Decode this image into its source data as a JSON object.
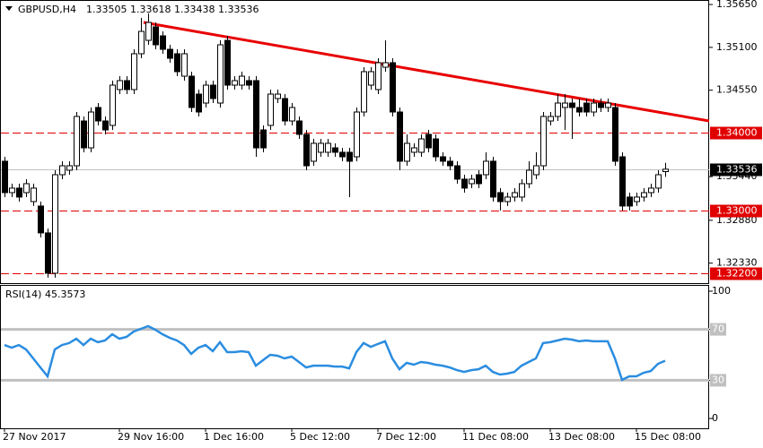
{
  "chart_data": {
    "type": "candlestick",
    "symbol": "GBPUSD,H4",
    "ohlc_labels": [
      "1.33505",
      "1.33618",
      "1.33438",
      "1.33536"
    ],
    "ylim": [
      1.32073,
      1.35708
    ],
    "yticks": [
      {
        "value": 1.3565,
        "label": "1.35650"
      },
      {
        "value": 1.351,
        "label": "1.35100"
      },
      {
        "value": 1.3455,
        "label": "1.34550"
      },
      {
        "value": 1.3344,
        "label": "1.33440"
      },
      {
        "value": 1.3288,
        "label": "1.32880"
      },
      {
        "value": 1.3233,
        "label": "1.32330"
      }
    ],
    "levels": [
      {
        "value": 1.34,
        "label": "1.34000"
      },
      {
        "value": 1.33,
        "label": "1.33000"
      },
      {
        "value": 1.322,
        "label": "1.32200"
      }
    ],
    "level_color": "#e00000",
    "current": {
      "value": 1.33536,
      "label": "1.33536"
    },
    "categories": [
      "27 Nov 2017",
      null,
      null,
      null,
      null,
      null,
      null,
      null,
      null,
      null,
      null,
      null,
      null,
      null,
      null,
      null,
      "29 Nov 16:00",
      null,
      null,
      null,
      null,
      null,
      null,
      null,
      null,
      null,
      null,
      null,
      "1 Dec 16:00",
      null,
      null,
      null,
      null,
      null,
      null,
      null,
      null,
      null,
      null,
      null,
      "5 Dec 12:00",
      null,
      null,
      null,
      null,
      null,
      null,
      null,
      null,
      null,
      null,
      null,
      "7 Dec 12:00",
      null,
      null,
      null,
      null,
      null,
      null,
      null,
      null,
      null,
      null,
      null,
      "11 Dec 08:00",
      null,
      null,
      null,
      null,
      null,
      null,
      null,
      null,
      null,
      null,
      null,
      "13 Dec 08:00",
      null,
      null,
      null,
      null,
      null,
      null,
      null,
      null,
      null,
      null,
      null,
      "15 Dec 08:00",
      null,
      null,
      null,
      null
    ],
    "candles": [
      [
        1.33638,
        1.33695,
        1.33178,
        1.33235
      ],
      [
        1.33235,
        1.3335,
        1.33178,
        1.33293
      ],
      [
        1.33293,
        1.3335,
        1.3312,
        1.33178
      ],
      [
        1.33235,
        1.33408,
        1.33178,
        1.3335
      ],
      [
        1.3312,
        1.3335,
        1.33063,
        1.33293
      ],
      [
        1.33063,
        1.3312,
        1.3266,
        1.32718
      ],
      [
        1.32718,
        1.32775,
        1.32143,
        1.322
      ],
      [
        1.322,
        1.33523,
        1.32143,
        1.33465
      ],
      [
        1.33465,
        1.33638,
        1.33408,
        1.3358
      ],
      [
        1.33523,
        1.33638,
        1.33465,
        1.3358
      ],
      [
        1.3358,
        1.3427,
        1.33523,
        1.34213
      ],
      [
        1.34155,
        1.34213,
        1.33753,
        1.3381
      ],
      [
        1.3381,
        1.34328,
        1.33753,
        1.3427
      ],
      [
        1.34328,
        1.34385,
        1.34098,
        1.34155
      ],
      [
        1.34155,
        1.34213,
        1.33983,
        1.3404
      ],
      [
        1.34098,
        1.34673,
        1.3404,
        1.34615
      ],
      [
        1.34558,
        1.3473,
        1.345,
        1.34673
      ],
      [
        1.34673,
        1.3473,
        1.345,
        1.34558
      ],
      [
        1.34558,
        1.35075,
        1.345,
        1.35018
      ],
      [
        1.35018,
        1.35478,
        1.3496,
        1.35305
      ],
      [
        1.3519,
        1.35535,
        1.35133,
        1.3542
      ],
      [
        1.35363,
        1.3542,
        1.35075,
        1.35133
      ],
      [
        1.35248,
        1.35305,
        1.35018,
        1.35075
      ],
      [
        1.35075,
        1.35133,
        1.34903,
        1.3496
      ],
      [
        1.35018,
        1.35075,
        1.3473,
        1.34788
      ],
      [
        1.3473,
        1.35075,
        1.34673,
        1.35018
      ],
      [
        1.3473,
        1.34788,
        1.3427,
        1.34328
      ],
      [
        1.345,
        1.34558,
        1.34213,
        1.3427
      ],
      [
        1.34385,
        1.34673,
        1.34328,
        1.34615
      ],
      [
        1.34615,
        1.34673,
        1.34385,
        1.34443
      ],
      [
        1.34385,
        1.3519,
        1.34328,
        1.35133
      ],
      [
        1.3519,
        1.35248,
        1.34558,
        1.34615
      ],
      [
        1.34615,
        1.3473,
        1.34558,
        1.34673
      ],
      [
        1.34615,
        1.34788,
        1.34558,
        1.3473
      ],
      [
        1.34673,
        1.3473,
        1.34558,
        1.34615
      ],
      [
        1.34673,
        1.3473,
        1.33695,
        1.3381
      ],
      [
        1.3404,
        1.34098,
        1.33753,
        1.3381
      ],
      [
        1.34098,
        1.34558,
        1.3404,
        1.345
      ],
      [
        1.34443,
        1.34558,
        1.34385,
        1.345
      ],
      [
        1.34443,
        1.345,
        1.34098,
        1.34155
      ],
      [
        1.34155,
        1.34385,
        1.34098,
        1.34328
      ],
      [
        1.34155,
        1.34213,
        1.33925,
        1.33983
      ],
      [
        1.33983,
        1.3404,
        1.33523,
        1.3358
      ],
      [
        1.33638,
        1.33925,
        1.3358,
        1.33868
      ],
      [
        1.33753,
        1.33925,
        1.33695,
        1.33868
      ],
      [
        1.33753,
        1.33925,
        1.33695,
        1.33868
      ],
      [
        1.3381,
        1.33868,
        1.33695,
        1.33753
      ],
      [
        1.33753,
        1.3381,
        1.33638,
        1.33695
      ],
      [
        1.33753,
        1.3381,
        1.33178,
        1.33638
      ],
      [
        1.33695,
        1.34328,
        1.33638,
        1.3427
      ],
      [
        1.3427,
        1.34845,
        1.34213,
        1.34788
      ],
      [
        1.34615,
        1.34845,
        1.34558,
        1.34788
      ],
      [
        1.34558,
        1.3496,
        1.345,
        1.34903
      ],
      [
        1.34845,
        1.3519,
        1.34788,
        1.34903
      ],
      [
        1.34903,
        1.3496,
        1.34213,
        1.3427
      ],
      [
        1.3427,
        1.34328,
        1.33523,
        1.33638
      ],
      [
        1.33638,
        1.33983,
        1.3358,
        1.33868
      ],
      [
        1.33753,
        1.33868,
        1.33695,
        1.3381
      ],
      [
        1.33753,
        1.33983,
        1.33695,
        1.33925
      ],
      [
        1.33983,
        1.3404,
        1.33753,
        1.3381
      ],
      [
        1.33925,
        1.33983,
        1.33638,
        1.33695
      ],
      [
        1.33695,
        1.33753,
        1.3358,
        1.33638
      ],
      [
        1.33638,
        1.33695,
        1.33523,
        1.3358
      ],
      [
        1.3358,
        1.33638,
        1.3335,
        1.33408
      ],
      [
        1.33408,
        1.33465,
        1.33235,
        1.33293
      ],
      [
        1.3335,
        1.33465,
        1.33293,
        1.33408
      ],
      [
        1.33465,
        1.33523,
        1.33293,
        1.3335
      ],
      [
        1.33465,
        1.33753,
        1.33408,
        1.33638
      ],
      [
        1.33638,
        1.33695,
        1.3312,
        1.33178
      ],
      [
        1.33235,
        1.33293,
        1.33005,
        1.3312
      ],
      [
        1.3312,
        1.33235,
        1.33063,
        1.33178
      ],
      [
        1.33178,
        1.33293,
        1.3312,
        1.33235
      ],
      [
        1.33178,
        1.33408,
        1.3312,
        1.3335
      ],
      [
        1.3335,
        1.33638,
        1.33293,
        1.33523
      ],
      [
        1.33465,
        1.33753,
        1.33408,
        1.3358
      ],
      [
        1.3358,
        1.3427,
        1.33523,
        1.34213
      ],
      [
        1.34155,
        1.3427,
        1.34098,
        1.34213
      ],
      [
        1.34213,
        1.345,
        1.34155,
        1.34385
      ],
      [
        1.34328,
        1.345,
        1.3404,
        1.34385
      ],
      [
        1.34385,
        1.34443,
        1.33925,
        1.34328
      ],
      [
        1.34328,
        1.34443,
        1.34213,
        1.3427
      ],
      [
        1.34385,
        1.34443,
        1.34213,
        1.3427
      ],
      [
        1.3427,
        1.34443,
        1.34213,
        1.34385
      ],
      [
        1.34385,
        1.34443,
        1.3427,
        1.34328
      ],
      [
        1.34328,
        1.34443,
        1.3427,
        1.34385
      ],
      [
        1.34328,
        1.34385,
        1.3358,
        1.33638
      ],
      [
        1.33695,
        1.33753,
        1.33005,
        1.33063
      ],
      [
        1.33178,
        1.33235,
        1.33005,
        1.33063
      ],
      [
        1.3312,
        1.33235,
        1.33063,
        1.33178
      ],
      [
        1.33178,
        1.33293,
        1.3312,
        1.33235
      ],
      [
        1.33235,
        1.3335,
        1.33178,
        1.33293
      ],
      [
        1.33293,
        1.33523,
        1.33235,
        1.33465
      ],
      [
        1.33505,
        1.33618,
        1.33438,
        1.33536
      ]
    ],
    "rsi": {
      "label": "RSI(14) 45.3573",
      "color": "#2b8de0",
      "ylim": [
        -7.7,
        104.9
      ],
      "yticks": [
        100,
        70,
        30,
        0
      ],
      "levels": [
        70,
        30
      ],
      "values": [
        57.7,
        55.6,
        57.7,
        54.2,
        47.2,
        40.1,
        33.1,
        54.2,
        57.7,
        59.2,
        62.7,
        57.7,
        62.7,
        59.9,
        61.3,
        66.2,
        62.7,
        64.1,
        68.3,
        70.4,
        72.5,
        69.7,
        66.2,
        63.4,
        61.3,
        57.7,
        50.7,
        55.6,
        57.7,
        52.8,
        59.9,
        52.1,
        52.1,
        52.8,
        52.1,
        41.5,
        45.8,
        50.0,
        49.3,
        47.2,
        48.6,
        44.4,
        40.1,
        41.5,
        41.5,
        41.5,
        40.8,
        40.8,
        39.4,
        52.1,
        59.2,
        56.3,
        58.5,
        60.6,
        47.2,
        38.7,
        43.7,
        42.3,
        44.4,
        43.7,
        42.3,
        41.5,
        40.1,
        38.0,
        36.6,
        38.0,
        38.7,
        41.5,
        36.6,
        34.5,
        35.2,
        36.6,
        41.5,
        44.4,
        47.2,
        59.2,
        59.9,
        61.3,
        62.7,
        62.0,
        60.6,
        61.3,
        60.6,
        60.6,
        60.6,
        47.2,
        30.3,
        33.1,
        33.1,
        35.9,
        37.3,
        43.0,
        45.3573
      ]
    }
  }
}
